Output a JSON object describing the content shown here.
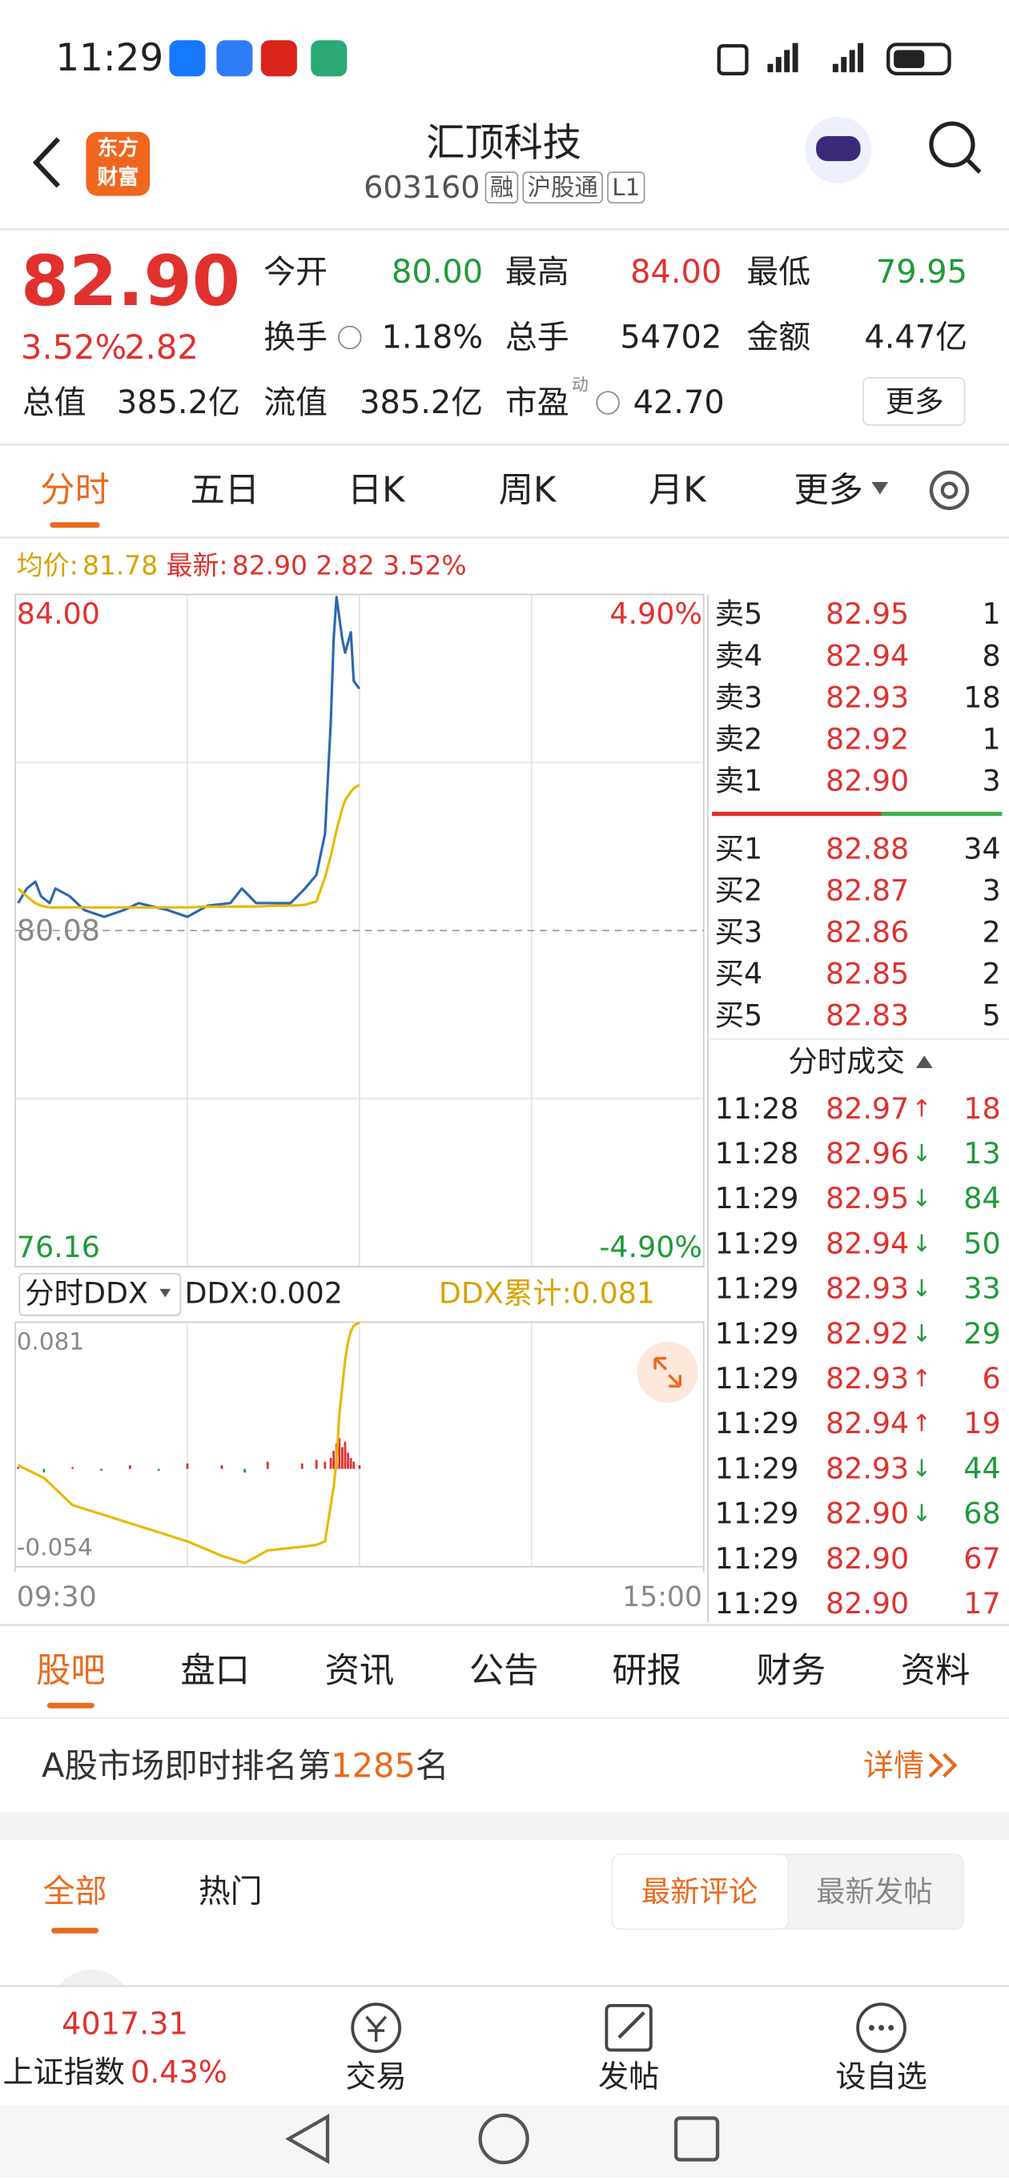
{
  "status_bar": {
    "time": "11:29"
  },
  "header": {
    "logo": [
      "东方",
      "财富"
    ],
    "title": "汇顶科技",
    "code": "603160",
    "tags": [
      "融",
      "沪股通",
      "L1"
    ]
  },
  "quote": {
    "price": "82.90",
    "change_pct": "3.52%",
    "change": "2.82",
    "fields": [
      {
        "label": "今开",
        "value": "80.00",
        "color": "#1f9a3a"
      },
      {
        "label": "最高",
        "value": "84.00",
        "color": "#e0312f"
      },
      {
        "label": "最低",
        "value": "79.95",
        "color": "#1f9a3a"
      },
      {
        "label": "换手",
        "value": "1.18%",
        "color": "#222222"
      },
      {
        "label": "总手",
        "value": "54702",
        "color": "#222222"
      },
      {
        "label": "金额",
        "value": "4.47亿",
        "color": "#222222"
      },
      {
        "label": "总值",
        "value": "385.2亿",
        "color": "#222222"
      },
      {
        "label": "流值",
        "value": "385.2亿",
        "color": "#222222"
      },
      {
        "label": "市盈",
        "note": "动",
        "value": "42.70",
        "color": "#222222"
      }
    ]
  },
  "more": "更多",
  "tabs": {
    "items": [
      "分时",
      "五日",
      "日K",
      "周K",
      "月K",
      "更多"
    ],
    "active": 0
  },
  "info_bar": {
    "avg_label": "均价:",
    "avg": "81.78",
    "latest_label": "最新:",
    "latest": "82.90",
    "change": "2.82",
    "change_pct": "3.52%"
  },
  "chart_data": [
    {
      "type": "line",
      "x": [
        1,
        4,
        7,
        9,
        12,
        14,
        19,
        24,
        31,
        38,
        43,
        53,
        60,
        67,
        75,
        79,
        84,
        91,
        96,
        101,
        105,
        108,
        110,
        111,
        112,
        114,
        115,
        117,
        118,
        120
      ],
      "xlim": [
        0,
        240
      ],
      "series": [
        {
          "color": "#2c67b0",
          "values": [
            80.4,
            80.57,
            80.65,
            80.48,
            80.4,
            80.57,
            80.48,
            80.32,
            80.24,
            80.32,
            80.4,
            80.32,
            80.24,
            80.37,
            80.4,
            80.57,
            80.4,
            80.4,
            80.4,
            80.57,
            80.73,
            81.21,
            82.51,
            83.48,
            83.97,
            83.48,
            83.32,
            83.56,
            82.99,
            82.9
          ]
        },
        {
          "color": "#e8b800",
          "values": [
            80.57,
            80.48,
            80.4,
            80.37,
            80.35,
            80.35,
            80.35,
            80.35,
            80.35,
            80.35,
            80.35,
            80.35,
            80.35,
            80.36,
            80.36,
            80.36,
            80.36,
            80.37,
            80.37,
            80.38,
            80.42,
            80.7,
            80.95,
            81.1,
            81.25,
            81.5,
            81.6,
            81.7,
            81.74,
            81.78
          ]
        }
      ],
      "ylim": [
        76.16,
        84.0
      ],
      "yticks": [
        {
          "value": 84.0,
          "label": "84.00"
        },
        {
          "value": 80.08,
          "label": "80.08"
        },
        {
          "value": 76.16,
          "label": "76.16"
        }
      ],
      "y2lim": [
        -4.9,
        4.9
      ],
      "y2ticks": [
        {
          "value": 4.9,
          "label": "4.90%"
        },
        {
          "value": -4.9,
          "label": "-4.90%"
        }
      ]
    },
    {
      "type": "combo",
      "x": [
        1,
        10,
        20,
        30,
        40,
        50,
        60,
        72,
        80,
        88,
        100,
        105,
        108,
        110,
        111,
        112,
        113,
        114,
        115,
        116,
        117,
        118,
        120
      ],
      "xlim": [
        0,
        240
      ],
      "xticks": [
        {
          "value": 0,
          "label": "09:30"
        },
        {
          "value": 240,
          "label": "15:00"
        }
      ],
      "series": [
        {
          "type": "bar",
          "color": "#e0312f",
          "negative_color": "#1f9a3a",
          "values": [
            0.001,
            -0.002,
            0.001,
            -0.001,
            0.002,
            -0.001,
            0.003,
            0.002,
            -0.002,
            0.004,
            0.003,
            0.005,
            0.004,
            0.006,
            0.01,
            0.014,
            0.017,
            0.012,
            0.015,
            0.009,
            0.006,
            0.004,
            0.002
          ]
        },
        {
          "type": "line",
          "color": "#e8b800",
          "values": [
            0.002,
            -0.005,
            -0.02,
            -0.025,
            -0.03,
            -0.035,
            -0.04,
            -0.048,
            -0.052,
            -0.045,
            -0.043,
            -0.042,
            -0.04,
            -0.02,
            -0.01,
            0.005,
            0.03,
            0.045,
            0.06,
            0.07,
            0.076,
            0.079,
            0.081
          ]
        }
      ],
      "ylim": [
        -0.054,
        0.081
      ],
      "yticks": [
        0.081,
        -0.054
      ]
    }
  ],
  "ddx_header": {
    "selector": "分时DDX",
    "ddx": "DDX:0.002",
    "cumulative": "DDX累计:0.081"
  },
  "order_book": {
    "asks": [
      {
        "label": "卖5",
        "price": "82.95",
        "volume": "1"
      },
      {
        "label": "卖4",
        "price": "82.94",
        "volume": "8"
      },
      {
        "label": "卖3",
        "price": "82.93",
        "volume": "18"
      },
      {
        "label": "卖2",
        "price": "82.92",
        "volume": "1"
      },
      {
        "label": "卖1",
        "price": "82.90",
        "volume": "3"
      }
    ],
    "bids": [
      {
        "label": "买1",
        "price": "82.88",
        "volume": "34"
      },
      {
        "label": "买2",
        "price": "82.87",
        "volume": "3"
      },
      {
        "label": "买3",
        "price": "82.86",
        "volume": "2"
      },
      {
        "label": "买4",
        "price": "82.85",
        "volume": "2"
      },
      {
        "label": "买5",
        "price": "82.83",
        "volume": "5"
      }
    ]
  },
  "trades": {
    "title": "分时成交",
    "rows": [
      {
        "time": "11:28",
        "price": "82.97",
        "arrow": "↑",
        "volume": "18",
        "color": "#e0312f"
      },
      {
        "time": "11:28",
        "price": "82.96",
        "arrow": "↓",
        "volume": "13",
        "color": "#1f9a3a"
      },
      {
        "time": "11:29",
        "price": "82.95",
        "arrow": "↓",
        "volume": "84",
        "color": "#1f9a3a"
      },
      {
        "time": "11:29",
        "price": "82.94",
        "arrow": "↓",
        "volume": "50",
        "color": "#1f9a3a"
      },
      {
        "time": "11:29",
        "price": "82.93",
        "arrow": "↓",
        "volume": "33",
        "color": "#1f9a3a"
      },
      {
        "time": "11:29",
        "price": "82.92",
        "arrow": "↓",
        "volume": "29",
        "color": "#1f9a3a"
      },
      {
        "time": "11:29",
        "price": "82.93",
        "arrow": "↑",
        "volume": "6",
        "color": "#e0312f"
      },
      {
        "time": "11:29",
        "price": "82.94",
        "arrow": "↑",
        "volume": "19",
        "color": "#e0312f"
      },
      {
        "time": "11:29",
        "price": "82.93",
        "arrow": "↓",
        "volume": "44",
        "color": "#1f9a3a"
      },
      {
        "time": "11:29",
        "price": "82.90",
        "arrow": "↓",
        "volume": "68",
        "color": "#1f9a3a"
      },
      {
        "time": "11:29",
        "price": "82.90",
        "volume": "67",
        "color": "#e0312f"
      },
      {
        "time": "11:29",
        "price": "82.90",
        "volume": "17",
        "color": "#e0312f"
      }
    ]
  },
  "section_tabs": {
    "items": [
      "股吧",
      "盘口",
      "资讯",
      "公告",
      "研报",
      "财务",
      "资料"
    ],
    "active": 0
  },
  "ranking": {
    "prefix": "A股市场即时排名第",
    "rank": "1285",
    "suffix": "名",
    "detail": "详情"
  },
  "feed_tabs": {
    "items": [
      "全部",
      "热门"
    ],
    "active": 0
  },
  "sort_options": {
    "items": [
      "最新评论",
      "最新发帖"
    ],
    "active": 0
  },
  "bottom_bar": {
    "index_value": "4017.31",
    "index_name": "上证指数",
    "index_change": "0.43%",
    "actions": [
      "交易",
      "发帖",
      "设自选"
    ]
  }
}
